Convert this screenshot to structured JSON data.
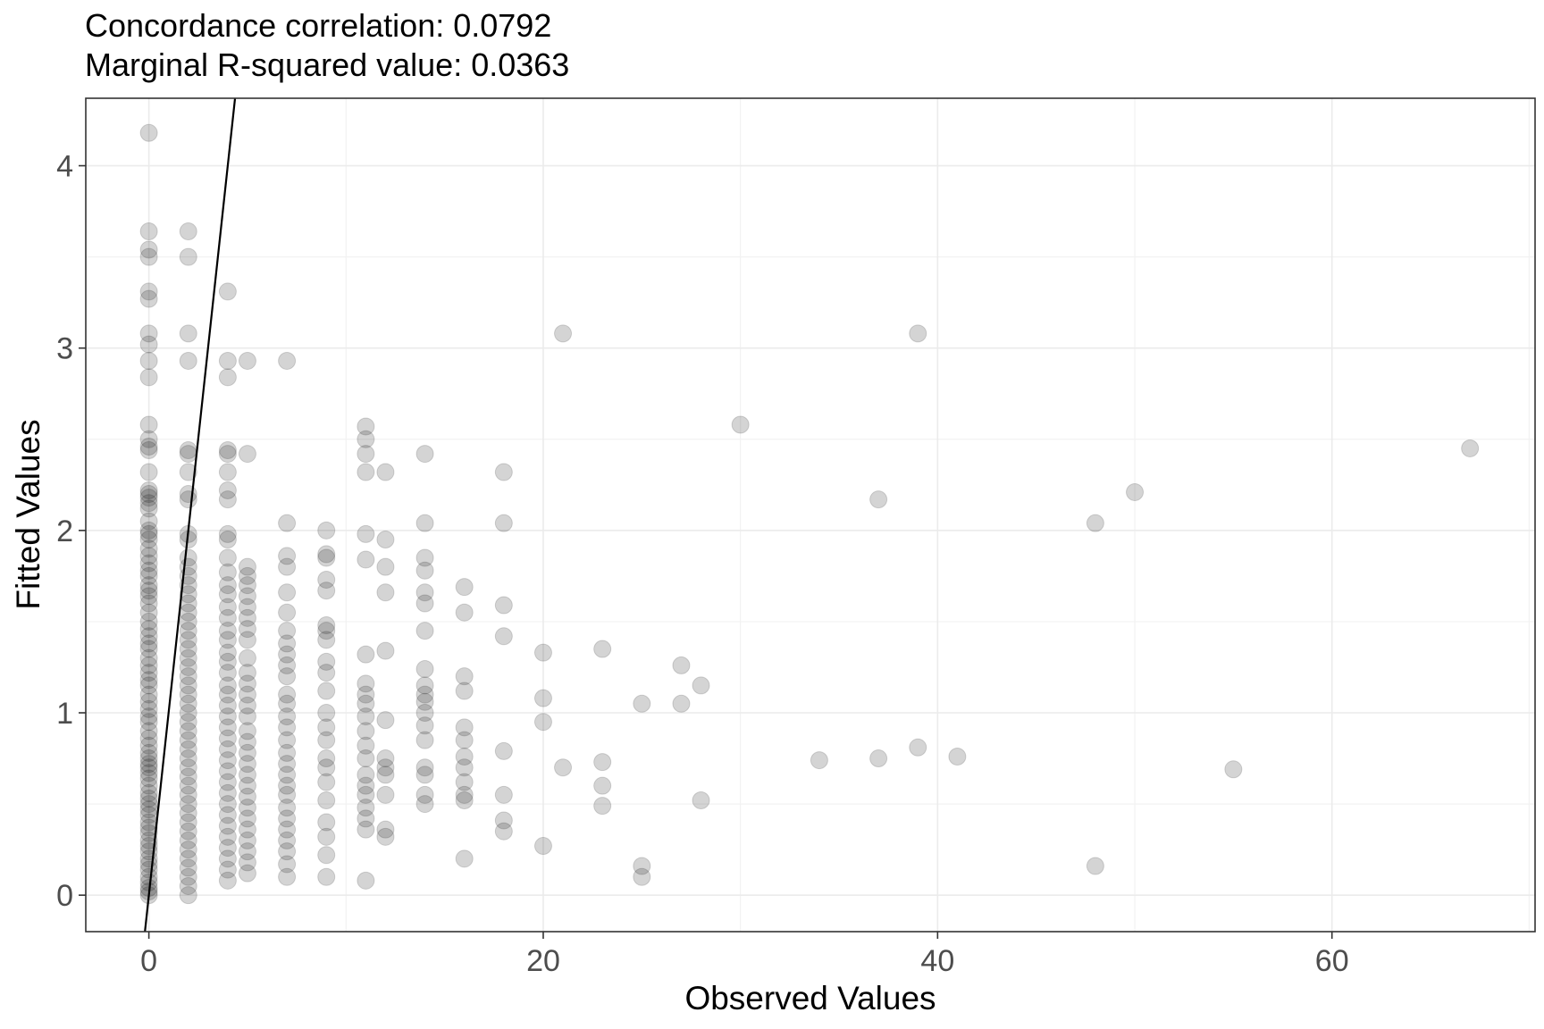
{
  "chart_data": {
    "type": "scatter",
    "title_lines": [
      "Concordance correlation: 0.0792",
      "Marginal R-squared value: 0.0363"
    ],
    "xlabel": "Observed Values",
    "ylabel": "Fitted Values",
    "xlim": [
      -3.2,
      70.3
    ],
    "ylim": [
      -0.2,
      4.37
    ],
    "x_ticks": [
      0,
      20,
      40,
      60
    ],
    "y_ticks": [
      0,
      1,
      2,
      3,
      4
    ],
    "x_minor": [
      10,
      30,
      50,
      70
    ],
    "y_minor": [
      0.5,
      1.5,
      2.5,
      3.5
    ],
    "x_tick_labels": [
      "0",
      "20",
      "40",
      "60"
    ],
    "y_tick_labels": [
      "0",
      "1",
      "2",
      "3",
      "4"
    ],
    "grid": true,
    "legend": "none",
    "point_color": "#000000",
    "point_alpha": 0.17,
    "identity_line": {
      "x": [
        -0.2,
        4.37
      ],
      "y": [
        -0.2,
        4.37
      ],
      "color": "#000000"
    },
    "points": {
      "x0_values": [
        4.18,
        3.64,
        3.54,
        3.5,
        3.31,
        3.27,
        3.08,
        3.02,
        2.93,
        2.84,
        2.58,
        2.5,
        2.46,
        2.44,
        2.32,
        2.22,
        2.2,
        2.18,
        2.15,
        2.12,
        2.05,
        2.0,
        1.98,
        1.95,
        1.9,
        1.86,
        1.82,
        1.78,
        1.75,
        1.7,
        1.67,
        1.64,
        1.6,
        1.55,
        1.5,
        1.46,
        1.42,
        1.38,
        1.35,
        1.3,
        1.26,
        1.22,
        1.18,
        1.15,
        1.1,
        1.06,
        1.02,
        0.98,
        0.95,
        0.9,
        0.86,
        0.82,
        0.78,
        0.75,
        0.72,
        0.7,
        0.67,
        0.64,
        0.6,
        0.56,
        0.53,
        0.5,
        0.47,
        0.44,
        0.4,
        0.37,
        0.34,
        0.3,
        0.27,
        0.24,
        0.2,
        0.17,
        0.14,
        0.1,
        0.07,
        0.04,
        0.02,
        0.0
      ],
      "x2_values": [
        3.64,
        3.5,
        3.08,
        2.93,
        2.44,
        2.42,
        2.32,
        2.2,
        2.17,
        1.98,
        1.95,
        1.85,
        1.8,
        1.75,
        1.7,
        1.65,
        1.6,
        1.55,
        1.5,
        1.45,
        1.4,
        1.35,
        1.3,
        1.25,
        1.2,
        1.15,
        1.1,
        1.05,
        1.0,
        0.95,
        0.9,
        0.85,
        0.8,
        0.75,
        0.7,
        0.65,
        0.6,
        0.55,
        0.5,
        0.45,
        0.4,
        0.35,
        0.3,
        0.25,
        0.2,
        0.15,
        0.1,
        0.05,
        0.0
      ],
      "x4_values": [
        3.31,
        2.93,
        2.84,
        2.44,
        2.42,
        2.32,
        2.22,
        2.17,
        1.98,
        1.95,
        1.85,
        1.77,
        1.7,
        1.65,
        1.58,
        1.52,
        1.45,
        1.4,
        1.33,
        1.28,
        1.22,
        1.15,
        1.1,
        1.04,
        0.98,
        0.92,
        0.86,
        0.8,
        0.74,
        0.68,
        0.62,
        0.56,
        0.5,
        0.44,
        0.38,
        0.32,
        0.26,
        0.2,
        0.14,
        0.08
      ],
      "x5_values": [
        2.93,
        2.42,
        1.8,
        1.75,
        1.7,
        1.64,
        1.58,
        1.52,
        1.46,
        1.4,
        1.3,
        1.22,
        1.16,
        1.1,
        1.04,
        0.98,
        0.9,
        0.84,
        0.78,
        0.72,
        0.66,
        0.6,
        0.54,
        0.48,
        0.42,
        0.36,
        0.3,
        0.24,
        0.18,
        0.12
      ],
      "x7_values": [
        2.93,
        2.04,
        1.86,
        1.8,
        1.66,
        1.55,
        1.45,
        1.38,
        1.32,
        1.26,
        1.2,
        1.1,
        1.05,
        0.98,
        0.92,
        0.85,
        0.78,
        0.72,
        0.66,
        0.6,
        0.55,
        0.48,
        0.42,
        0.36,
        0.3,
        0.24,
        0.17,
        0.1
      ],
      "x9_values": [
        2.0,
        1.87,
        1.85,
        1.73,
        1.67,
        1.48,
        1.45,
        1.4,
        1.28,
        1.22,
        1.12,
        1.0,
        0.92,
        0.85,
        0.75,
        0.7,
        0.62,
        0.52,
        0.4,
        0.32,
        0.22,
        0.1
      ],
      "x11_values": [
        2.57,
        2.5,
        2.42,
        2.32,
        1.98,
        1.84,
        1.32,
        1.16,
        1.1,
        1.05,
        0.98,
        0.9,
        0.82,
        0.75,
        0.66,
        0.6,
        0.55,
        0.48,
        0.42,
        0.36,
        0.08
      ],
      "x12_values": [
        2.32,
        1.95,
        1.8,
        1.66,
        1.34,
        0.96,
        0.75,
        0.7,
        0.66,
        0.55,
        0.36,
        0.32
      ],
      "x14_values": [
        2.42,
        2.04,
        1.85,
        1.78,
        1.66,
        1.6,
        1.45,
        1.24,
        1.15,
        1.1,
        1.06,
        1.0,
        0.93,
        0.85,
        0.7,
        0.66,
        0.55,
        0.5
      ],
      "x16_values": [
        1.69,
        1.55,
        1.2,
        1.12,
        0.92,
        0.85,
        0.76,
        0.7,
        0.62,
        0.55,
        0.52,
        0.2
      ],
      "others": [
        {
          "x": 18,
          "y": 2.32
        },
        {
          "x": 18,
          "y": 2.04
        },
        {
          "x": 18,
          "y": 1.59
        },
        {
          "x": 18,
          "y": 1.42
        },
        {
          "x": 18,
          "y": 0.79
        },
        {
          "x": 18,
          "y": 0.55
        },
        {
          "x": 18,
          "y": 0.41
        },
        {
          "x": 18,
          "y": 0.35
        },
        {
          "x": 20,
          "y": 1.33
        },
        {
          "x": 20,
          "y": 1.08
        },
        {
          "x": 20,
          "y": 0.95
        },
        {
          "x": 20,
          "y": 0.27
        },
        {
          "x": 21,
          "y": 3.08
        },
        {
          "x": 21,
          "y": 0.7
        },
        {
          "x": 23,
          "y": 1.35
        },
        {
          "x": 23,
          "y": 0.73
        },
        {
          "x": 23,
          "y": 0.6
        },
        {
          "x": 23,
          "y": 0.49
        },
        {
          "x": 25,
          "y": 1.05
        },
        {
          "x": 25,
          "y": 0.16
        },
        {
          "x": 25,
          "y": 0.1
        },
        {
          "x": 27,
          "y": 1.26
        },
        {
          "x": 27,
          "y": 1.05
        },
        {
          "x": 28,
          "y": 1.15
        },
        {
          "x": 28,
          "y": 0.52
        },
        {
          "x": 30,
          "y": 2.58
        },
        {
          "x": 34,
          "y": 0.74
        },
        {
          "x": 37,
          "y": 2.17
        },
        {
          "x": 37,
          "y": 0.75
        },
        {
          "x": 39,
          "y": 3.08
        },
        {
          "x": 39,
          "y": 0.81
        },
        {
          "x": 41,
          "y": 0.76
        },
        {
          "x": 48,
          "y": 2.04
        },
        {
          "x": 48,
          "y": 0.16
        },
        {
          "x": 50,
          "y": 2.21
        },
        {
          "x": 55,
          "y": 0.69
        },
        {
          "x": 67,
          "y": 2.45
        }
      ]
    }
  }
}
